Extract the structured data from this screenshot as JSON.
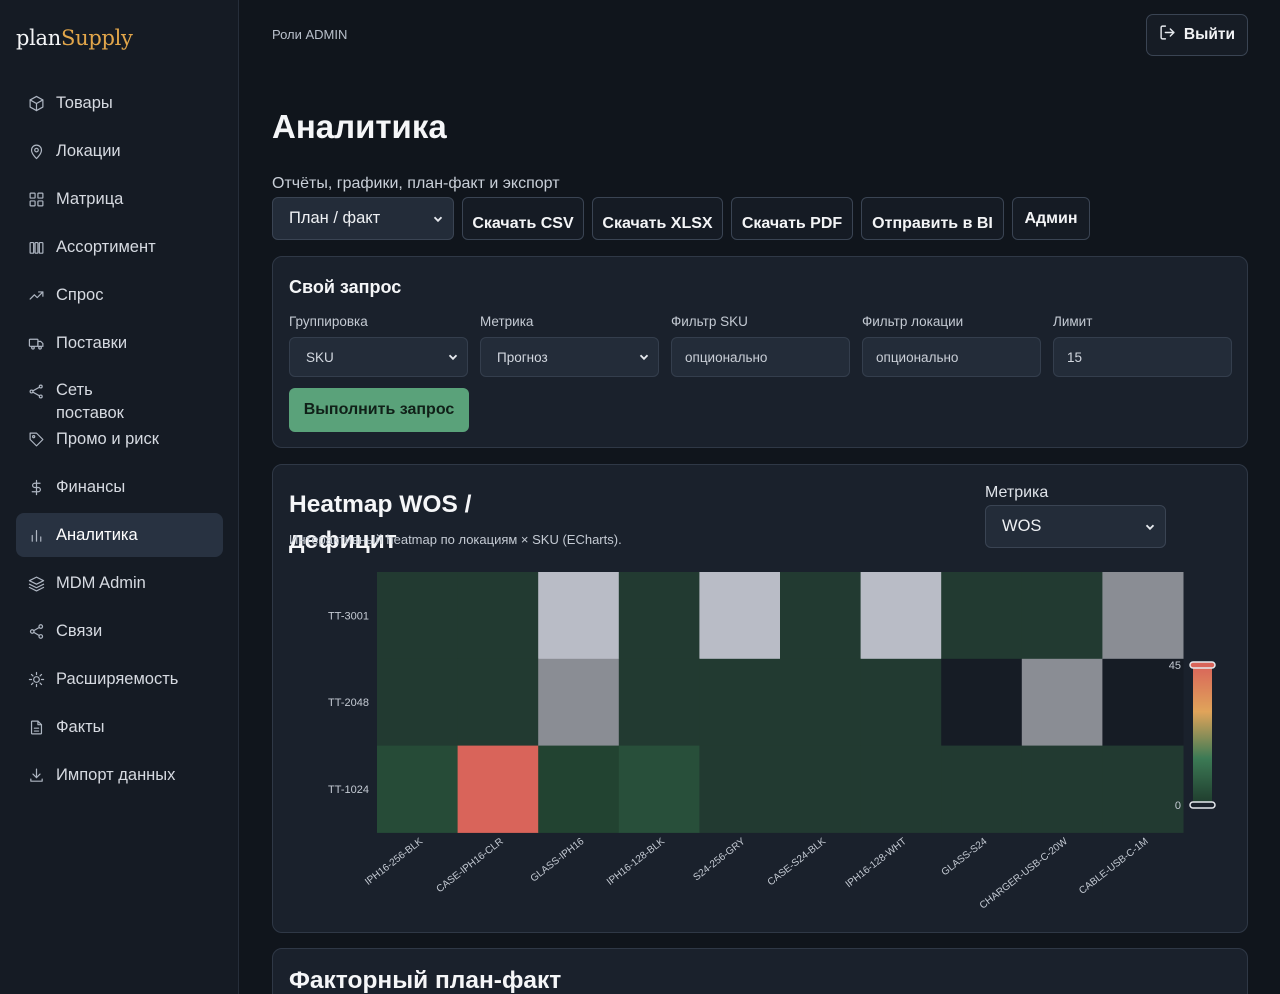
{
  "app": {
    "logo_a": "plan",
    "logo_b": "Supply"
  },
  "sidebar": {
    "items": [
      {
        "label": "Товары",
        "icon": "box-icon"
      },
      {
        "label": "Локации",
        "icon": "map-pin-icon"
      },
      {
        "label": "Матрица",
        "icon": "grid-icon"
      },
      {
        "label": "Ассортимент",
        "icon": "columns-icon"
      },
      {
        "label": "Спрос",
        "icon": "trend-icon"
      },
      {
        "label": "Поставки",
        "icon": "truck-icon"
      },
      {
        "label": "Сеть поставок",
        "icon": "network-icon"
      },
      {
        "label": "Промо и риск",
        "icon": "tag-icon"
      },
      {
        "label": "Финансы",
        "icon": "dollar-icon"
      },
      {
        "label": "Аналитика",
        "icon": "bar-chart-icon",
        "active": true
      },
      {
        "label": "MDM Admin",
        "icon": "layers-icon"
      },
      {
        "label": "Связи",
        "icon": "share-icon"
      },
      {
        "label": "Расширяемость",
        "icon": "sun-icon"
      },
      {
        "label": "Факты",
        "icon": "file-icon"
      },
      {
        "label": "Импорт данных",
        "icon": "download-icon"
      }
    ]
  },
  "header": {
    "roles": "Роли ADMIN",
    "logout_label": "Выйти"
  },
  "page": {
    "title": "Аналитика",
    "subtitle": "Отчёты, графики, план-факт и экспорт",
    "report_select": "План / факт",
    "buttons": {
      "csv": "Скачать CSV",
      "xlsx": "Скачать XLSX",
      "pdf": "Скачать PDF",
      "bi": "Отправить в BI",
      "admin": "Админ"
    }
  },
  "custom_query": {
    "title": "Свой запрос",
    "grouping_label": "Группировка",
    "grouping_value": "SKU",
    "metric_label": "Метрика",
    "metric_value": "Прогноз",
    "sku_filter_label": "Фильтр SKU",
    "sku_filter_placeholder": "опционально",
    "location_filter_label": "Фильтр локации",
    "location_filter_placeholder": "опционально",
    "limit_label": "Лимит",
    "limit_value": "15",
    "run_label": "Выполнить запрос"
  },
  "heatmap": {
    "title": "Heatmap WOS / дефицит",
    "description": "Интерактивный heatmap по локациям × SKU (ECharts).",
    "metric_label": "Метрика",
    "metric_value": "WOS"
  },
  "chart_data": {
    "type": "heatmap",
    "x": [
      "IPH16-256-BLK",
      "CASE-IPH16-CLR",
      "GLASS-IPH16",
      "IPH16-128-BLK",
      "S24-256-GRY",
      "CASE-S24-BLK",
      "IPH16-128-WHT",
      "GLASS-S24",
      "CHARGER-USB-C-20W",
      "CABLE-USB-C-1M"
    ],
    "y": [
      "TT-3001",
      "TT-2048",
      "TT-1024"
    ],
    "values": [
      [
        "over",
        "over",
        "high",
        "over",
        "high",
        "over",
        "high",
        "over",
        "over",
        "mid"
      ],
      [
        "over",
        "over",
        "mid",
        "over",
        "over",
        "over",
        "over",
        "none",
        "mid",
        "none"
      ],
      [
        4,
        45,
        2,
        5,
        0,
        0,
        0,
        0,
        0,
        0
      ]
    ],
    "visual_map": {
      "min": 0,
      "max": 45,
      "colors": [
        "#1e3a2c",
        "#3c7a55",
        "#e0a45a",
        "#d9645a"
      ]
    },
    "colors": {
      "over": "#223a31",
      "high": "#b9bcc6",
      "mid": "#8a8d94",
      "none": "#161c25",
      "base": "#223a31"
    }
  },
  "plan_fact": {
    "title": "Факторный план-факт"
  }
}
